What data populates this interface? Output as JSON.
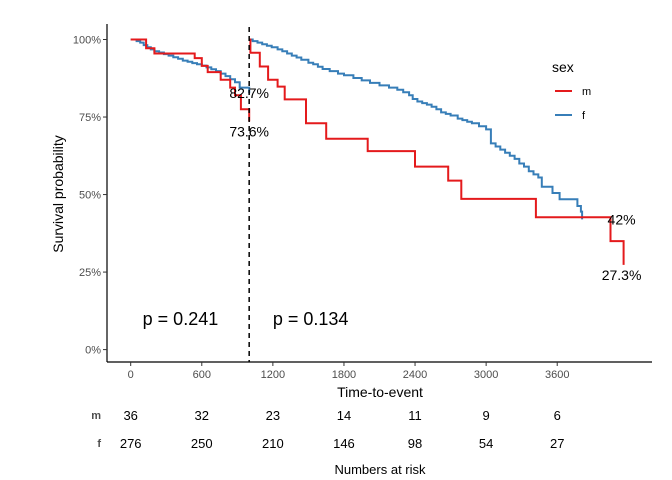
{
  "chart_data": {
    "type": "line",
    "subtype": "kaplan-meier-step",
    "xlabel": "Time-to-event",
    "ylabel": "Survival probability",
    "xlim": [
      -200,
      4400
    ],
    "ylim": [
      -0.04,
      1.05
    ],
    "x_ticks": [
      0,
      600,
      1200,
      1800,
      2400,
      3000,
      3600
    ],
    "y_ticks": [
      {
        "value": 0,
        "label": "0%"
      },
      {
        "value": 0.25,
        "label": "25%"
      },
      {
        "value": 0.5,
        "label": "50%"
      },
      {
        "value": 0.75,
        "label": "75%"
      },
      {
        "value": 1,
        "label": "100%"
      }
    ],
    "grid": false,
    "legend": {
      "title": "sex",
      "position": "right-top"
    },
    "landmark_time": 1000,
    "series": [
      {
        "name": "m",
        "color": "#e41a1c",
        "steps": [
          [
            0,
            1.0
          ],
          [
            130,
            0.972
          ],
          [
            200,
            0.955
          ],
          [
            540,
            0.94
          ],
          [
            600,
            0.915
          ],
          [
            650,
            0.895
          ],
          [
            760,
            0.87
          ],
          [
            840,
            0.845
          ],
          [
            880,
            0.82
          ],
          [
            930,
            0.775
          ],
          [
            1000,
            0.736
          ]
        ]
      },
      {
        "name": "f",
        "color": "#377eb8",
        "steps": [
          [
            0,
            1.0
          ],
          [
            50,
            0.995
          ],
          [
            80,
            0.99
          ],
          [
            110,
            0.982
          ],
          [
            140,
            0.975
          ],
          [
            170,
            0.968
          ],
          [
            200,
            0.962
          ],
          [
            240,
            0.958
          ],
          [
            280,
            0.953
          ],
          [
            320,
            0.948
          ],
          [
            360,
            0.943
          ],
          [
            400,
            0.938
          ],
          [
            440,
            0.932
          ],
          [
            480,
            0.928
          ],
          [
            520,
            0.924
          ],
          [
            560,
            0.92
          ],
          [
            600,
            0.916
          ],
          [
            640,
            0.91
          ],
          [
            680,
            0.904
          ],
          [
            720,
            0.898
          ],
          [
            760,
            0.89
          ],
          [
            800,
            0.882
          ],
          [
            840,
            0.872
          ],
          [
            880,
            0.862
          ],
          [
            920,
            0.845
          ],
          [
            1000,
            0.827
          ]
        ]
      }
    ],
    "series_landmark": [
      {
        "name": "m",
        "color": "#e41a1c",
        "steps": [
          [
            1000,
            1.0
          ],
          [
            1010,
            0.957
          ],
          [
            1090,
            0.913
          ],
          [
            1160,
            0.87
          ],
          [
            1240,
            0.848
          ],
          [
            1300,
            0.807
          ],
          [
            1480,
            0.73
          ],
          [
            1650,
            0.68
          ],
          [
            2000,
            0.64
          ],
          [
            2400,
            0.59
          ],
          [
            2680,
            0.545
          ],
          [
            2790,
            0.486
          ],
          [
            3420,
            0.427
          ],
          [
            4050,
            0.35
          ],
          [
            4160,
            0.273
          ]
        ]
      },
      {
        "name": "f",
        "color": "#377eb8",
        "steps": [
          [
            1000,
            1.0
          ],
          [
            1030,
            0.995
          ],
          [
            1070,
            0.99
          ],
          [
            1110,
            0.985
          ],
          [
            1150,
            0.98
          ],
          [
            1190,
            0.975
          ],
          [
            1240,
            0.968
          ],
          [
            1280,
            0.962
          ],
          [
            1320,
            0.955
          ],
          [
            1360,
            0.948
          ],
          [
            1400,
            0.942
          ],
          [
            1440,
            0.935
          ],
          [
            1500,
            0.925
          ],
          [
            1540,
            0.92
          ],
          [
            1580,
            0.912
          ],
          [
            1620,
            0.905
          ],
          [
            1680,
            0.898
          ],
          [
            1750,
            0.89
          ],
          [
            1800,
            0.885
          ],
          [
            1880,
            0.876
          ],
          [
            1950,
            0.868
          ],
          [
            2020,
            0.86
          ],
          [
            2100,
            0.852
          ],
          [
            2180,
            0.845
          ],
          [
            2250,
            0.838
          ],
          [
            2300,
            0.83
          ],
          [
            2350,
            0.82
          ],
          [
            2380,
            0.808
          ],
          [
            2420,
            0.8
          ],
          [
            2460,
            0.795
          ],
          [
            2500,
            0.79
          ],
          [
            2540,
            0.783
          ],
          [
            2580,
            0.775
          ],
          [
            2620,
            0.765
          ],
          [
            2660,
            0.76
          ],
          [
            2700,
            0.755
          ],
          [
            2760,
            0.745
          ],
          [
            2800,
            0.74
          ],
          [
            2840,
            0.735
          ],
          [
            2880,
            0.73
          ],
          [
            2940,
            0.72
          ],
          [
            3000,
            0.71
          ],
          [
            3040,
            0.665
          ],
          [
            3080,
            0.655
          ],
          [
            3120,
            0.645
          ],
          [
            3160,
            0.635
          ],
          [
            3200,
            0.625
          ],
          [
            3240,
            0.615
          ],
          [
            3280,
            0.6
          ],
          [
            3320,
            0.59
          ],
          [
            3360,
            0.575
          ],
          [
            3400,
            0.565
          ],
          [
            3440,
            0.555
          ],
          [
            3470,
            0.525
          ],
          [
            3560,
            0.505
          ],
          [
            3620,
            0.485
          ],
          [
            3770,
            0.463
          ],
          [
            3800,
            0.445
          ],
          [
            3810,
            0.42
          ]
        ]
      }
    ],
    "annotations": [
      {
        "text": "82.7%",
        "x": 1000,
        "y": 0.827,
        "series": "f"
      },
      {
        "text": "73.6%",
        "x": 1000,
        "y": 0.736,
        "series": "m"
      },
      {
        "text": "42%",
        "x": 4160,
        "y": 0.42,
        "series": "f"
      },
      {
        "text": "27.3%",
        "x": 4160,
        "y": 0.273,
        "series": "m"
      }
    ],
    "pvalues": [
      {
        "text": "p = 0.241",
        "x": 420
      },
      {
        "text": "p = 0.134",
        "x": 1200
      }
    ],
    "risk_table": {
      "title": "Numbers at risk",
      "times": [
        0,
        600,
        1200,
        1800,
        2400,
        3000,
        3600
      ],
      "rows": [
        {
          "label": "m",
          "counts": [
            "36",
            "32",
            "23",
            "14",
            "11",
            "9",
            "6"
          ]
        },
        {
          "label": "f",
          "counts": [
            "276",
            "250",
            "210",
            "146",
            "98",
            "54",
            "27"
          ]
        }
      ]
    }
  }
}
